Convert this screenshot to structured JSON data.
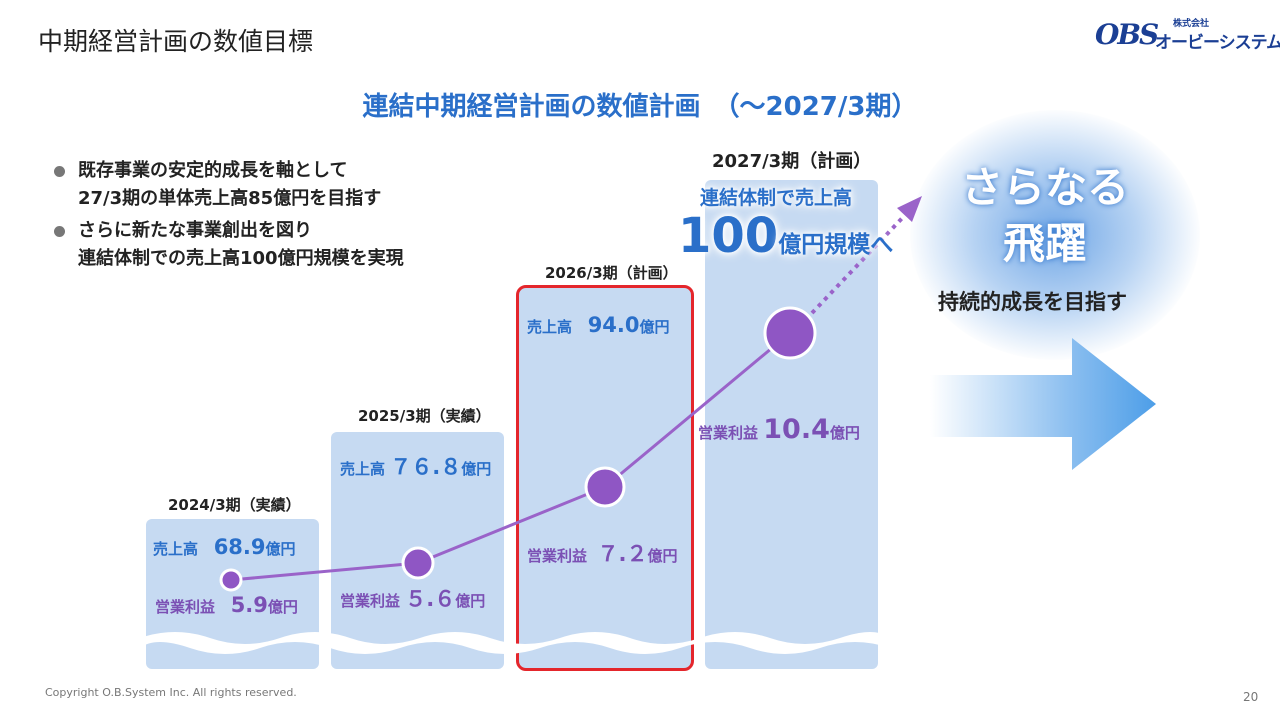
{
  "header": {
    "title": "中期経営計画の数値目標",
    "logo_small": "株式会社",
    "logo_name": "オービーシステム",
    "logo_mark": "OBS"
  },
  "main_title": "連結中期経営計画の数値計画　（～2027/3期）",
  "bullets": [
    {
      "line1": "既存事業の安定的成長を軸として",
      "line2": "27/3期の単体売上高85億円を目指す"
    },
    {
      "line1": "さらに新たな事業創出を図り",
      "line2": "連結体制での売上高100億円規模を実現"
    }
  ],
  "periods": [
    {
      "label": "2024/3期（実績）",
      "sales_label": "売上高",
      "sales_value": "68.9",
      "sales_unit": "億円",
      "op_label": "営業利益",
      "op_value": "5.9",
      "op_unit": "億円"
    },
    {
      "label": "2025/3期（実績）",
      "sales_label": "売上高",
      "sales_value": "７６.８",
      "sales_unit": "億円",
      "op_label": "営業利益",
      "op_value": "５.６",
      "op_unit": "億円"
    },
    {
      "label": "2026/3期（計画）",
      "sales_label": "売上高",
      "sales_value": "94.0",
      "sales_unit": "億円",
      "op_label": "営業利益",
      "op_value": "７.２",
      "op_unit": "億円"
    },
    {
      "label": "2027/3期（計画）",
      "op_label": "営業利益",
      "op_value": "10.4",
      "op_unit": "億円"
    }
  ],
  "callout": {
    "line1": "連結体制で売上高",
    "big": "100",
    "rest": "億円規模へ"
  },
  "future": {
    "line1": "さらなる",
    "line2": "飛躍",
    "sub": "持続的成長を目指す"
  },
  "footer": "Copyright O.B.System Inc. All rights reserved.",
  "page_number": "20",
  "colors": {
    "accent_blue": "#2a6fc9",
    "purple": "#7b50b4",
    "highlight_red": "#e4262c",
    "column_fill": "#c6daf2"
  }
}
